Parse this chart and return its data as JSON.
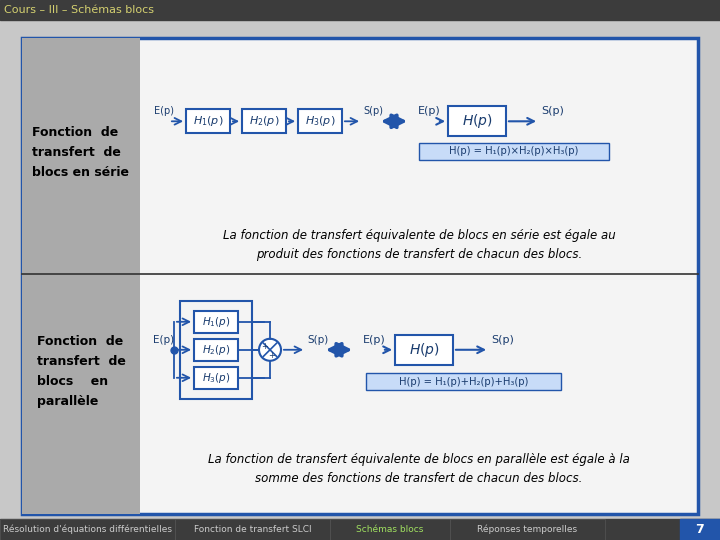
{
  "title": "Cours – III – Schémas blocs",
  "title_bg": "#3c3c3c",
  "title_color": "#d4d070",
  "footer_bg": "#3c3c3c",
  "footer_items": [
    "Résolution d'équations différentielles",
    "Fonction de transfert SLCI",
    "Schémas blocs",
    "Réponses temporelles"
  ],
  "footer_active": "Schémas blocs",
  "footer_active_color": "#a0e060",
  "footer_inactive_color": "#cccccc",
  "page_number": "7",
  "outer_bg": "#e0e0e0",
  "main_border": "#2255aa",
  "left_col_bg": "#aaaaaa",
  "right_col_bg": "#ffffff",
  "section1_label": "Fonction  de\ntransfert  de\nblocs en série",
  "section2_label": "Fonction  de\ntransfert  de\nblocs    en\nparallèle",
  "block_fill": "#ffffff",
  "block_border": "#2255aa",
  "block_text_color": "#1a3c6e",
  "arrow_color": "#2255aa",
  "formula1_bg": "#c8dcf8",
  "formula1_text": "H(p) = H₁(p)×H₂(p)×H₃(p)",
  "formula2_bg": "#c8dcf8",
  "formula2_text": "H(p) = H₁(p)+H₂(p)+H₃(p)",
  "italic_text1": "La fonction de transfert équivalente de blocs en série est égale au\nproduit des fonctions de transfert de chacun des blocs.",
  "italic_text2": "La fonction de transfert équivalente de blocs en parallèle est égale à la\nsomme des fonctions de transfert de chacun des blocs."
}
